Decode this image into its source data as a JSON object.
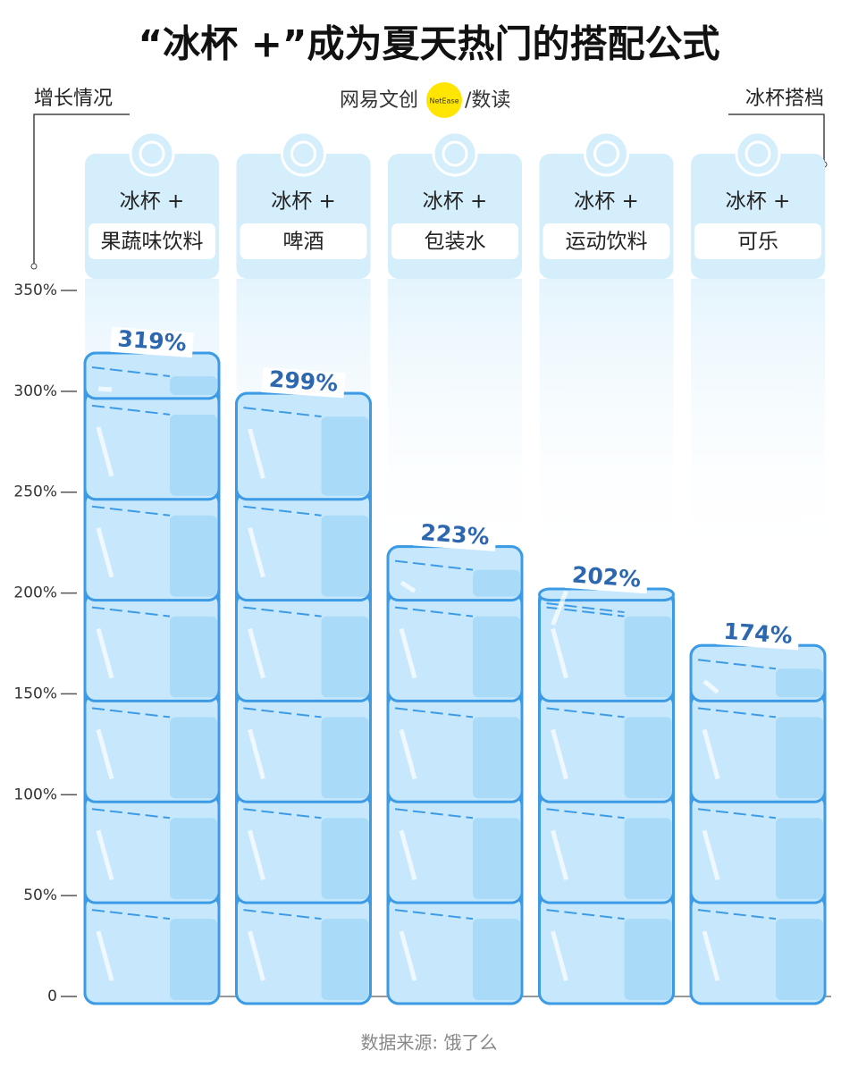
{
  "chart_data": {
    "type": "bar",
    "title": "“冰杯 +”成为夏天热门的搭配公式",
    "y_label": "增长情况",
    "x_label": "冰杯搭档",
    "brand": {
      "name": "网易文创",
      "logo": "NetEase",
      "suffix": "/数读"
    },
    "category_prefixes": [
      "冰杯 +",
      "冰杯 +",
      "冰杯 +",
      "冰杯 +",
      "冰杯 +"
    ],
    "categories": [
      "果蔬味饮料",
      "啤酒",
      "包装水",
      "运动饮料",
      "可乐"
    ],
    "values": [
      319,
      299,
      223,
      202,
      174
    ],
    "value_labels": [
      "319%",
      "299%",
      "223%",
      "202%",
      "174%"
    ],
    "color": "#bfe4fb",
    "ylim": [
      0,
      350
    ],
    "yticks": [
      0,
      {
        "value": 50,
        "label": "50%"
      },
      {
        "value": 100,
        "label": "100%"
      },
      {
        "value": 150,
        "label": "150%"
      },
      {
        "value": 200,
        "label": "200%"
      },
      {
        "value": 250,
        "label": "250%"
      },
      {
        "value": 300,
        "label": "300%"
      },
      {
        "value": 350,
        "label": "350%"
      }
    ],
    "source": "数据来源: 饿了么"
  }
}
